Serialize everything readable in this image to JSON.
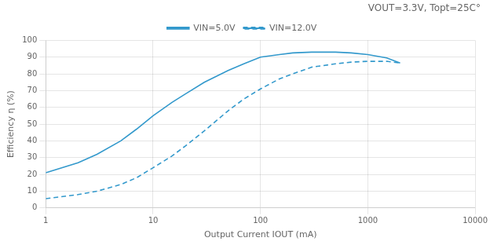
{
  "chart_data": {
    "type": "line",
    "title": "VOUT=3.3V, Topt=25C°",
    "xlabel": "Output Current IOUT (mA)",
    "ylabel": "Efficiency η (%)",
    "log": "x",
    "grid": true,
    "legend": "top",
    "xlim": [
      1,
      10000
    ],
    "ylim": [
      0,
      100
    ],
    "xticks": [
      1,
      10,
      100,
      1000,
      10000
    ],
    "yticks": [
      0,
      10,
      20,
      30,
      40,
      50,
      60,
      70,
      80,
      90,
      100
    ],
    "x": [
      1,
      2,
      3,
      5,
      7,
      10,
      15,
      20,
      30,
      50,
      70,
      100,
      150,
      200,
      300,
      500,
      700,
      1000,
      1500,
      2000
    ],
    "series": [
      {
        "name": "VIN=5.0V",
        "color": "#3399CC",
        "line_style": "solid",
        "values": [
          21,
          27,
          32,
          40,
          47,
          55,
          63,
          68,
          75,
          82,
          86,
          90,
          91.5,
          92.5,
          93.0,
          93.0,
          92.5,
          91.5,
          89.5,
          86.5
        ]
      },
      {
        "name": "VIN=12.0V",
        "color": "#3399CC",
        "line_style": "dashed",
        "values": [
          5.5,
          8,
          10,
          14,
          18,
          24,
          31,
          37,
          46,
          58,
          65,
          71,
          77,
          80,
          84,
          86,
          87,
          87.5,
          87.5,
          86.5
        ]
      }
    ]
  }
}
